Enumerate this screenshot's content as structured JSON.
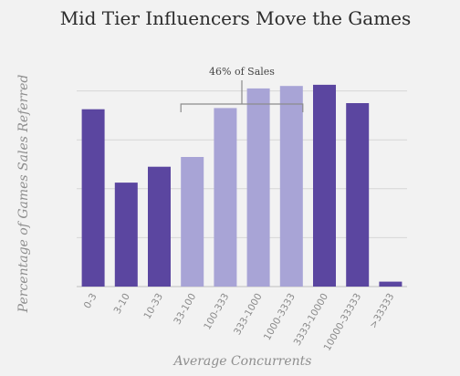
{
  "chart_data": {
    "type": "bar",
    "title": "Mid Tier Influencers Move the Games",
    "xlabel": "Average Concurrents",
    "ylabel": "Percentage of Games Sales Referred",
    "categories": [
      "0-3",
      "3-10",
      "10-33",
      "33-100",
      "100-333",
      "333-1000",
      "1000-3333",
      "3333-10000",
      "10000-33333",
      ">33333"
    ],
    "values": [
      72.5,
      42.5,
      49,
      53,
      73,
      81,
      82,
      82.5,
      75,
      2
    ],
    "highlighted": [
      false,
      false,
      false,
      true,
      true,
      true,
      true,
      false,
      false,
      false
    ],
    "ylim": [
      0,
      100
    ],
    "grid": true,
    "annotation": {
      "text": "46% of Sales",
      "from_category": "33-100",
      "to_category": "1000-3333"
    },
    "colors": {
      "primary": "#5b46a0",
      "highlight": "#a8a4d6",
      "background": "#f2f2f2"
    }
  }
}
